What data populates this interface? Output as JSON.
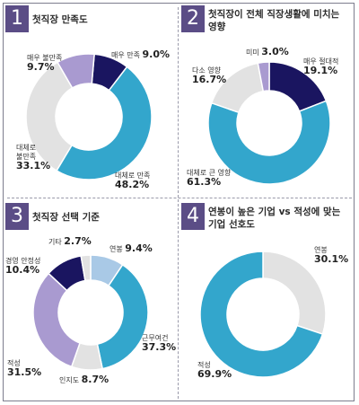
{
  "colors": {
    "navy": "#1a1560",
    "cyan": "#33a6cc",
    "gray": "#e2e2e2",
    "lavender": "#a99ad0",
    "lightblue": "#a9c9e6",
    "badge": "#5b4d86"
  },
  "chart_data": [
    {
      "type": "pie",
      "number": "1",
      "title": "첫직장 만족도",
      "slices": [
        {
          "label": "매우 만족",
          "value": 9.0,
          "value_text": "9.0%",
          "color": "navy"
        },
        {
          "label": "대체로 만족",
          "value": 48.2,
          "value_text": "48.2%",
          "color": "cyan"
        },
        {
          "label": "대체로 불만족",
          "value": 33.1,
          "value_text": "33.1%",
          "color": "gray"
        },
        {
          "label": "매우 불만족",
          "value": 9.7,
          "value_text": "9.7%",
          "color": "lavender"
        }
      ]
    },
    {
      "type": "pie",
      "number": "2",
      "title": "첫직장이 전체 직장생활에 미치는 영향",
      "slices": [
        {
          "label": "매우 절대적",
          "value": 19.1,
          "value_text": "19.1%",
          "color": "navy"
        },
        {
          "label": "대체로 큰 영향",
          "value": 61.3,
          "value_text": "61.3%",
          "color": "cyan"
        },
        {
          "label": "다소 영향",
          "value": 16.7,
          "value_text": "16.7%",
          "color": "gray"
        },
        {
          "label": "미미",
          "value": 3.0,
          "value_text": "3.0%",
          "color": "lavender"
        }
      ]
    },
    {
      "type": "pie",
      "number": "3",
      "title": "첫직장 선택 기준",
      "slices": [
        {
          "label": "연봉",
          "value": 9.4,
          "value_text": "9.4%",
          "color": "lightblue"
        },
        {
          "label": "근무여건",
          "value": 37.3,
          "value_text": "37.3%",
          "color": "cyan"
        },
        {
          "label": "인지도",
          "value": 8.7,
          "value_text": "8.7%",
          "color": "gray"
        },
        {
          "label": "적성",
          "value": 31.5,
          "value_text": "31.5%",
          "color": "lavender"
        },
        {
          "label": "경영 안정성",
          "value": 10.4,
          "value_text": "10.4%",
          "color": "navy"
        },
        {
          "label": "기타",
          "value": 2.7,
          "value_text": "2.7%",
          "color": "gray"
        }
      ]
    },
    {
      "type": "pie",
      "number": "4",
      "title": "연봉이 높은 기업 vs 적성에 맞는 기업 선호도",
      "slices": [
        {
          "label": "연봉",
          "value": 30.1,
          "value_text": "30.1%",
          "color": "gray"
        },
        {
          "label": "적성",
          "value": 69.9,
          "value_text": "69.9%",
          "color": "cyan"
        }
      ]
    }
  ]
}
